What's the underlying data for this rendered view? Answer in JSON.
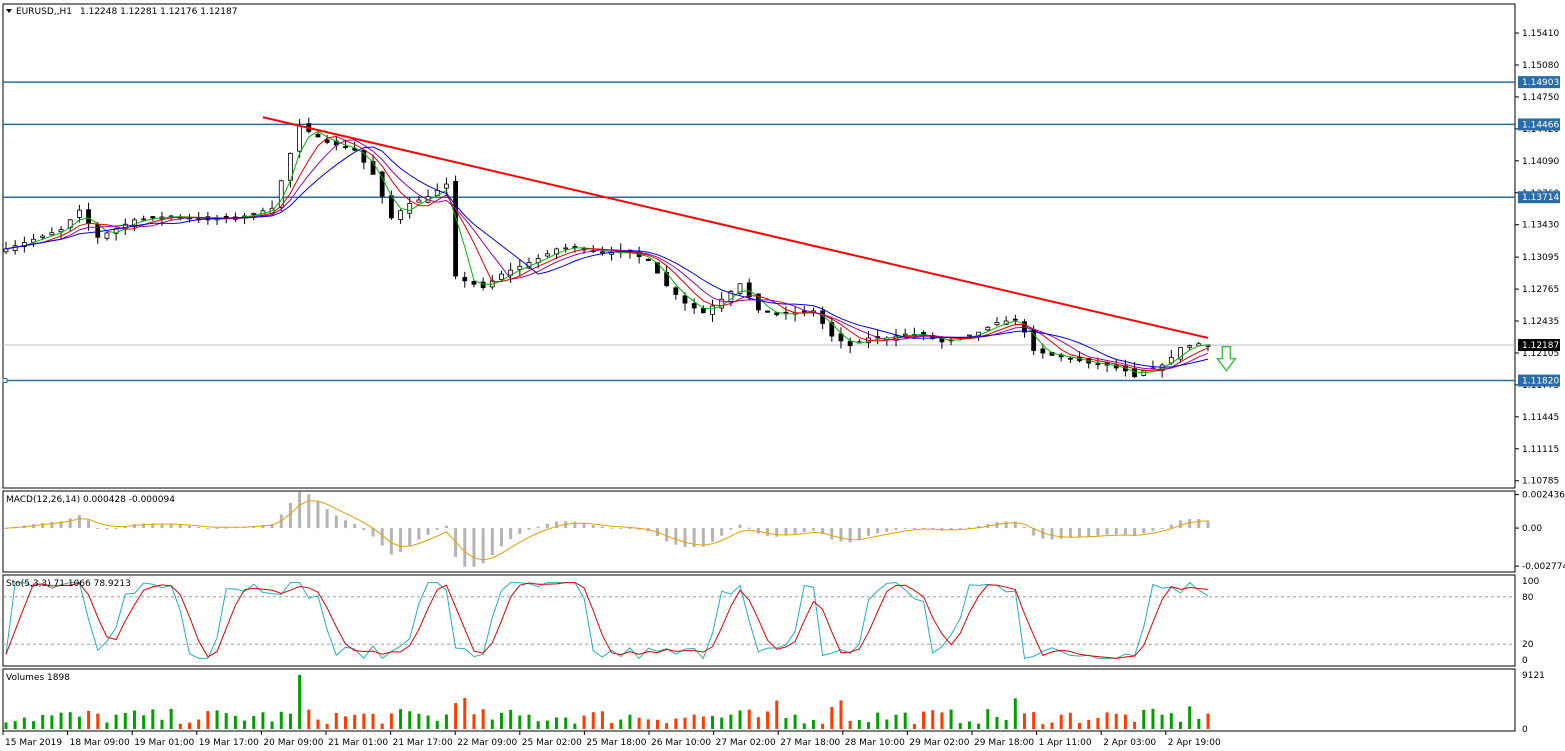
{
  "main": {
    "symbol": "EURUSD,,H1",
    "ohlc": "1.12248 1.12281 1.12176 1.12187",
    "price_range": [
      1.1071,
      1.1571
    ],
    "price_ticks": [
      "1.15410",
      "1.15080",
      "1.14750",
      "1.14420",
      "1.14090",
      "1.13760",
      "1.13430",
      "1.13095",
      "1.12765",
      "1.12435",
      "1.12105",
      "1.11775",
      "1.11445",
      "1.11115",
      "1.10785"
    ],
    "levels": [
      {
        "label": "1.14903",
        "value": 1.14903
      },
      {
        "label": "1.14466",
        "value": 1.14466
      },
      {
        "label": "1.13714",
        "value": 1.13714
      },
      {
        "label": "1.11820",
        "value": 1.1182
      }
    ],
    "current_price": {
      "label": "1.12187",
      "value": 1.12187
    },
    "trendline": {
      "start": {
        "bar": 28,
        "price": 1.1454
      },
      "end": {
        "bar": 131,
        "price": 1.1226
      }
    },
    "down_arrow": {
      "bar": 133,
      "price": 1.1217
    },
    "close_path": [
      [
        0,
        1.1318
      ],
      [
        6,
        1.1338
      ],
      [
        8,
        1.1358
      ],
      [
        10,
        1.133
      ],
      [
        14,
        1.1348
      ],
      [
        18,
        1.1352
      ],
      [
        22,
        1.1348
      ],
      [
        26,
        1.1352
      ],
      [
        29,
        1.136
      ],
      [
        32,
        1.1445
      ],
      [
        35,
        1.1428
      ],
      [
        38,
        1.142
      ],
      [
        40,
        1.1395
      ],
      [
        42,
        1.135
      ],
      [
        44,
        1.1365
      ],
      [
        46,
        1.1372
      ],
      [
        48,
        1.1385
      ],
      [
        49,
        1.129
      ],
      [
        50,
        1.1285
      ],
      [
        52,
        1.1278
      ],
      [
        54,
        1.1292
      ],
      [
        56,
        1.13
      ],
      [
        58,
        1.1308
      ],
      [
        60,
        1.1318
      ],
      [
        62,
        1.132
      ],
      [
        64,
        1.1316
      ],
      [
        66,
        1.1314
      ],
      [
        68,
        1.1314
      ],
      [
        70,
        1.1306
      ],
      [
        72,
        1.128
      ],
      [
        74,
        1.1262
      ],
      [
        76,
        1.1252
      ],
      [
        78,
        1.1266
      ],
      [
        80,
        1.1282
      ],
      [
        82,
        1.1255
      ],
      [
        84,
        1.125
      ],
      [
        86,
        1.1252
      ],
      [
        88,
        1.1254
      ],
      [
        90,
        1.1228
      ],
      [
        92,
        1.1218
      ],
      [
        94,
        1.1226
      ],
      [
        96,
        1.1226
      ],
      [
        98,
        1.123
      ],
      [
        100,
        1.1229
      ],
      [
        102,
        1.1222
      ],
      [
        104,
        1.1226
      ],
      [
        106,
        1.1232
      ],
      [
        108,
        1.1242
      ],
      [
        110,
        1.1245
      ],
      [
        111,
        1.1232
      ],
      [
        112,
        1.1213
      ],
      [
        114,
        1.1208
      ],
      [
        116,
        1.1205
      ],
      [
        118,
        1.12
      ],
      [
        120,
        1.1198
      ],
      [
        122,
        1.1192
      ],
      [
        123,
        1.1186
      ],
      [
        124,
        1.1192
      ],
      [
        126,
        1.1198
      ],
      [
        127,
        1.1206
      ],
      [
        128,
        1.1216
      ],
      [
        130,
        1.122
      ],
      [
        131,
        1.12187
      ]
    ]
  },
  "macd": {
    "label": "MACD(12,26,14) 0.000428 -0.000094",
    "range": [
      -0.0032,
      0.0027
    ],
    "ticks": [
      "0.002436",
      "0.00",
      "-0.002774"
    ]
  },
  "stoch": {
    "label": "Sto(5,3,3) 71.1066 78.9213",
    "ticks": [
      "100",
      "80",
      "20",
      "0"
    ],
    "levels": [
      80,
      20
    ]
  },
  "volumes": {
    "label": "Volumes 1898",
    "max": 9121,
    "ticks": [
      "9121",
      "0"
    ]
  },
  "x_ticks": [
    "15 Mar 2019",
    "18 Mar 09:00",
    "19 Mar 01:00",
    "19 Mar 17:00",
    "20 Mar 09:00",
    "21 Mar 01:00",
    "21 Mar 17:00",
    "22 Mar 09:00",
    "25 Mar 02:00",
    "25 Mar 18:00",
    "26 Mar 10:00",
    "27 Mar 02:00",
    "27 Mar 18:00",
    "28 Mar 10:00",
    "29 Mar 02:00",
    "29 Mar 18:00",
    "1 Apr 11:00",
    "2 Apr 03:00",
    "2 Apr 19:00"
  ],
  "colors": {
    "bull_volume": "#00a000",
    "bear_volume": "#ff3c00",
    "level_line": "#2a6ca8",
    "trendline": "#ff0000",
    "ma_green": "#00b400",
    "ma_red": "#e00000",
    "ma_purple": "#a000a0",
    "ma_blue": "#0000e0",
    "macd_hist": "#b4b4b4",
    "macd_signal": "#e8a000",
    "stoch_main": "#20b0c0",
    "stoch_signal": "#e00000",
    "arrow": "#40c040"
  }
}
